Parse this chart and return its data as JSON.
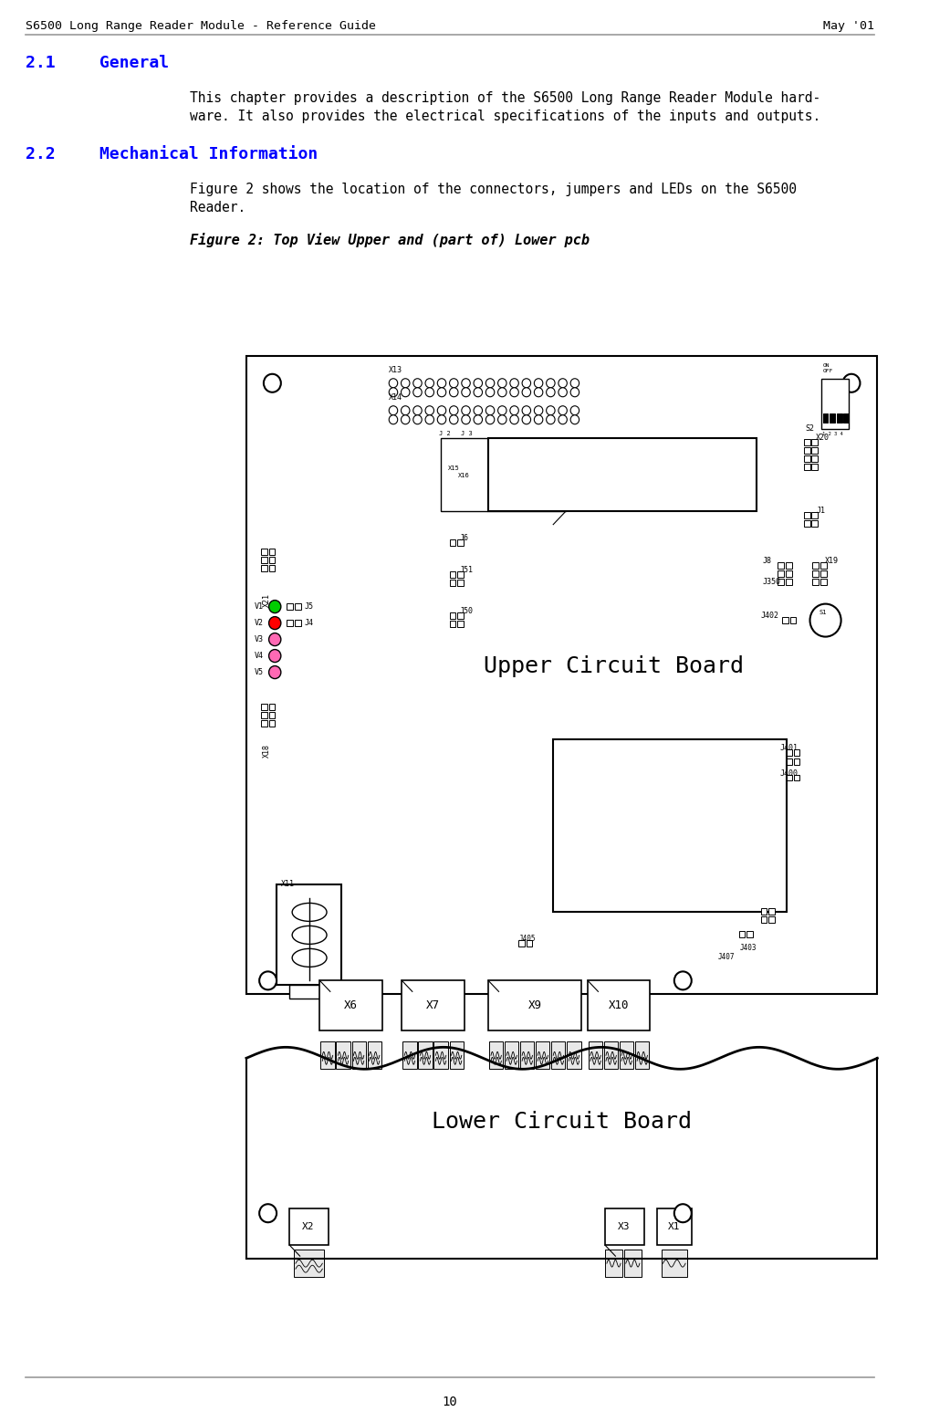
{
  "header_left": "S6500 Long Range Reader Module - Reference Guide",
  "header_right": "May '01",
  "section_21": "2.1",
  "section_21_title": "General",
  "section_21_body": "This chapter provides a description of the S6500 Long Range Reader Module hard-\nware. It also provides the electrical specifications of the inputs and outputs.",
  "section_22": "2.2",
  "section_22_title": "Mechanical Information",
  "section_22_body": "Figure 2 shows the location of the connectors, jumpers and LEDs on the S6500\nReader.",
  "figure_caption": "Figure 2: Top View Upper and (part of) Lower pcb",
  "footer_text": "10",
  "bg_color": "#ffffff",
  "text_color": "#000000",
  "blue_color": "#0000ff",
  "header_line_color": "#999999"
}
